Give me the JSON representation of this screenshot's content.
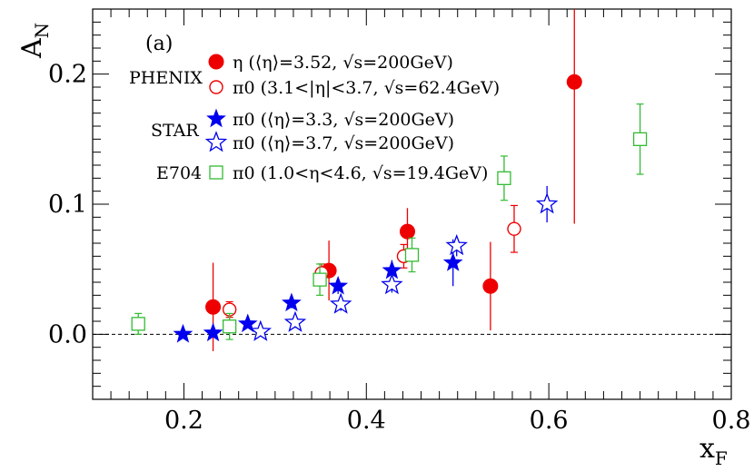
{
  "chart_data": {
    "type": "scatter",
    "title": "",
    "panel_label": "(a)",
    "xlabel": "x",
    "xlabel_sub": "F",
    "ylabel": "A",
    "ylabel_sub": "N",
    "xlim": [
      0.1,
      0.8
    ],
    "ylim": [
      -0.05,
      0.25
    ],
    "x_ticks": [
      0.2,
      0.4,
      0.6,
      0.8
    ],
    "x_tick_labels": [
      "0.2",
      "0.4",
      "0.6",
      "0.8"
    ],
    "y_ticks": [
      0.0,
      0.1,
      0.2
    ],
    "y_tick_labels": [
      "0.0",
      "0.1",
      "0.2"
    ],
    "zero_line": true,
    "groups": [
      {
        "label": "PHENIX",
        "series": [
          0,
          1
        ]
      },
      {
        "label": "STAR",
        "series": [
          2,
          3
        ]
      },
      {
        "label": "E704",
        "series": [
          4
        ]
      }
    ],
    "series": [
      {
        "name": "η (⟨η⟩=3.52, √s=200GeV)",
        "legend_label": "η (⟨η⟩=3.52, √s=200GeV)",
        "marker": "filled-circle",
        "color": "#ee0000",
        "points": [
          {
            "x": 0.232,
            "y": 0.021,
            "err": 0.034
          },
          {
            "x": 0.359,
            "y": 0.049,
            "err": 0.023
          },
          {
            "x": 0.445,
            "y": 0.079,
            "err": 0.018
          },
          {
            "x": 0.536,
            "y": 0.037,
            "err": 0.034
          },
          {
            "x": 0.628,
            "y": 0.194,
            "err": 0.109
          }
        ]
      },
      {
        "name": "π0 (3.1<|η|<3.7, √s=62.4GeV)",
        "legend_label": "π0 (3.1<|η|<3.7, √s=62.4GeV)",
        "marker": "open-circle",
        "color": "#ee0000",
        "points": [
          {
            "x": 0.25,
            "y": 0.019,
            "err": 0.006
          },
          {
            "x": 0.351,
            "y": 0.047,
            "err": 0.007
          },
          {
            "x": 0.441,
            "y": 0.06,
            "err": 0.009
          },
          {
            "x": 0.562,
            "y": 0.081,
            "err": 0.018
          }
        ]
      },
      {
        "name": "π0 (⟨η⟩=3.3, √s=200GeV)",
        "legend_label": "π0 (⟨η⟩=3.3, √s=200GeV)",
        "marker": "filled-star",
        "color": "#0000ee",
        "points": [
          {
            "x": 0.199,
            "y": 0.0,
            "err": 0.002
          },
          {
            "x": 0.232,
            "y": 0.001,
            "err": 0.002
          },
          {
            "x": 0.27,
            "y": 0.008,
            "err": 0.003
          },
          {
            "x": 0.318,
            "y": 0.024,
            "err": 0.004
          },
          {
            "x": 0.369,
            "y": 0.037,
            "err": 0.006
          },
          {
            "x": 0.428,
            "y": 0.049,
            "err": 0.008
          },
          {
            "x": 0.495,
            "y": 0.055,
            "err": 0.018
          }
        ]
      },
      {
        "name": "π0 (⟨η⟩=3.7, √s=200GeV)",
        "legend_label": "π0 (⟨η⟩=3.7, √s=200GeV)",
        "marker": "open-star",
        "color": "#0000ee",
        "points": [
          {
            "x": 0.284,
            "y": 0.002,
            "err": 0.003
          },
          {
            "x": 0.322,
            "y": 0.009,
            "err": 0.004
          },
          {
            "x": 0.372,
            "y": 0.023,
            "err": 0.005
          },
          {
            "x": 0.428,
            "y": 0.038,
            "err": 0.006
          },
          {
            "x": 0.499,
            "y": 0.068,
            "err": 0.008
          },
          {
            "x": 0.598,
            "y": 0.1,
            "err": 0.014
          }
        ]
      },
      {
        "name": "π0 (1.0<η<4.6, √s=19.4GeV)",
        "legend_label": "π0 (1.0<η<4.6, √s=19.4GeV)",
        "marker": "open-square",
        "color": "#33bb33",
        "points": [
          {
            "x": 0.15,
            "y": 0.008,
            "err": 0.008
          },
          {
            "x": 0.25,
            "y": 0.006,
            "err": 0.01
          },
          {
            "x": 0.349,
            "y": 0.042,
            "err": 0.012
          },
          {
            "x": 0.45,
            "y": 0.061,
            "err": 0.013
          },
          {
            "x": 0.551,
            "y": 0.12,
            "err": 0.017
          },
          {
            "x": 0.7,
            "y": 0.15,
            "err": 0.027
          }
        ]
      }
    ]
  }
}
